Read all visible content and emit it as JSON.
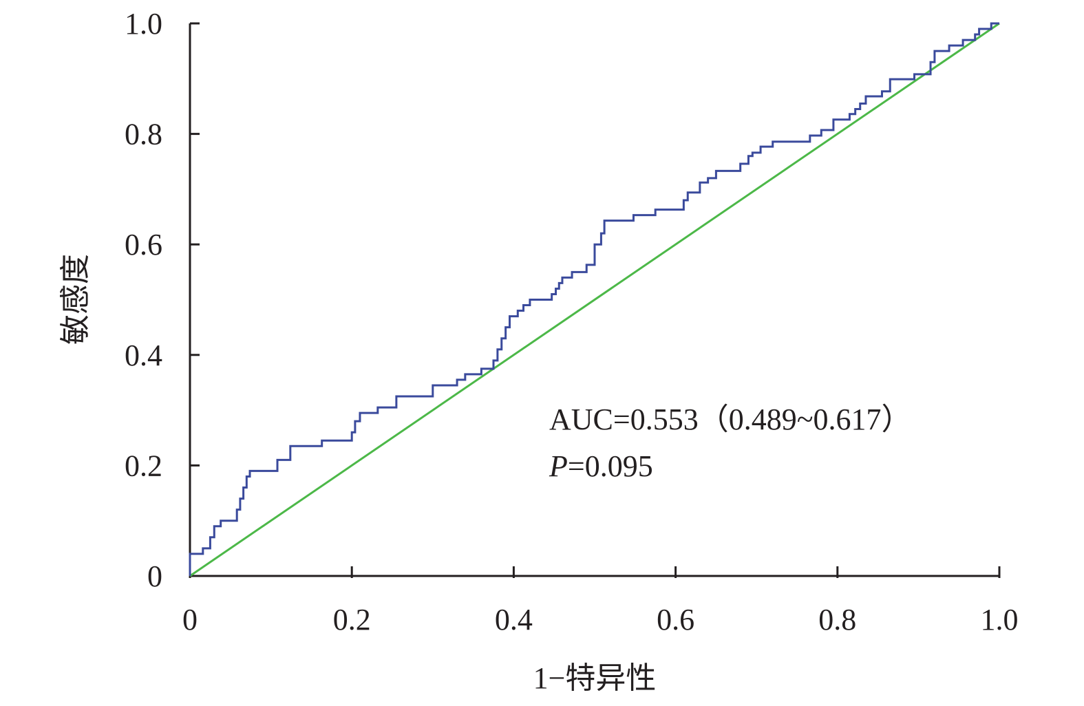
{
  "chart_data": {
    "type": "line",
    "xlabel": "1−特异性",
    "ylabel": "敏感度",
    "annotations": [
      [
        "AUC=0.553（0.489~0.617）"
      ],
      [
        "P",
        "=0.095"
      ]
    ],
    "xlim": [
      0,
      1
    ],
    "ylim": [
      0,
      1
    ],
    "xticks": [
      0,
      0.2,
      0.4,
      0.6,
      0.8,
      {
        "value": 1,
        "label": "1.0"
      }
    ],
    "yticks": [
      0,
      0.2,
      0.4,
      0.6,
      0.8,
      {
        "value": 1,
        "label": "1.0"
      }
    ],
    "grid": false,
    "series": [
      {
        "color": "#3a4a9c",
        "x": [
          0,
          0,
          0.016,
          0.016,
          0.025,
          0.025,
          0.03,
          0.03,
          0.038,
          0.038,
          0.058,
          0.058,
          0.062,
          0.062,
          0.066,
          0.066,
          0.07,
          0.07,
          0.074,
          0.074,
          0.108,
          0.108,
          0.124,
          0.124,
          0.163,
          0.163,
          0.2,
          0.2,
          0.204,
          0.204,
          0.21,
          0.21,
          0.232,
          0.232,
          0.255,
          0.255,
          0.3,
          0.3,
          0.33,
          0.33,
          0.34,
          0.34,
          0.36,
          0.36,
          0.375,
          0.375,
          0.38,
          0.38,
          0.385,
          0.385,
          0.39,
          0.39,
          0.395,
          0.395,
          0.405,
          0.405,
          0.412,
          0.412,
          0.42,
          0.42,
          0.447,
          0.447,
          0.452,
          0.452,
          0.456,
          0.456,
          0.46,
          0.46,
          0.472,
          0.472,
          0.49,
          0.49,
          0.5,
          0.5,
          0.508,
          0.508,
          0.512,
          0.512,
          0.548,
          0.548,
          0.575,
          0.575,
          0.61,
          0.61,
          0.615,
          0.615,
          0.63,
          0.63,
          0.64,
          0.64,
          0.65,
          0.65,
          0.68,
          0.68,
          0.69,
          0.69,
          0.695,
          0.695,
          0.705,
          0.705,
          0.72,
          0.72,
          0.766,
          0.766,
          0.78,
          0.78,
          0.795,
          0.795,
          0.815,
          0.815,
          0.822,
          0.822,
          0.828,
          0.828,
          0.835,
          0.835,
          0.855,
          0.855,
          0.865,
          0.865,
          0.895,
          0.895,
          0.915,
          0.915,
          0.92,
          0.92,
          0.938,
          0.938,
          0.955,
          0.955,
          0.97,
          0.97,
          0.975,
          0.975,
          0.99,
          0.99,
          1
        ],
        "values": [
          0,
          0.04,
          0.04,
          0.05,
          0.05,
          0.07,
          0.07,
          0.09,
          0.09,
          0.1,
          0.1,
          0.12,
          0.12,
          0.14,
          0.14,
          0.16,
          0.16,
          0.18,
          0.18,
          0.19,
          0.19,
          0.21,
          0.21,
          0.235,
          0.235,
          0.245,
          0.245,
          0.26,
          0.26,
          0.28,
          0.28,
          0.295,
          0.295,
          0.305,
          0.305,
          0.325,
          0.325,
          0.345,
          0.345,
          0.355,
          0.355,
          0.365,
          0.365,
          0.375,
          0.375,
          0.39,
          0.39,
          0.41,
          0.41,
          0.43,
          0.43,
          0.45,
          0.45,
          0.47,
          0.47,
          0.48,
          0.48,
          0.49,
          0.49,
          0.5,
          0.5,
          0.51,
          0.51,
          0.52,
          0.52,
          0.53,
          0.53,
          0.54,
          0.54,
          0.55,
          0.55,
          0.563,
          0.563,
          0.6,
          0.6,
          0.62,
          0.62,
          0.643,
          0.643,
          0.653,
          0.653,
          0.663,
          0.663,
          0.68,
          0.68,
          0.694,
          0.694,
          0.712,
          0.712,
          0.72,
          0.72,
          0.733,
          0.733,
          0.746,
          0.746,
          0.76,
          0.76,
          0.766,
          0.766,
          0.777,
          0.777,
          0.786,
          0.786,
          0.797,
          0.797,
          0.807,
          0.807,
          0.826,
          0.826,
          0.836,
          0.836,
          0.845,
          0.845,
          0.855,
          0.855,
          0.868,
          0.868,
          0.877,
          0.877,
          0.899,
          0.899,
          0.908,
          0.908,
          0.93,
          0.93,
          0.95,
          0.95,
          0.96,
          0.96,
          0.97,
          0.97,
          0.98,
          0.98,
          0.99,
          0.99,
          1,
          1
        ]
      },
      {
        "color": "#4cb848",
        "x": [
          0,
          1
        ],
        "values": [
          0,
          1
        ]
      }
    ]
  }
}
